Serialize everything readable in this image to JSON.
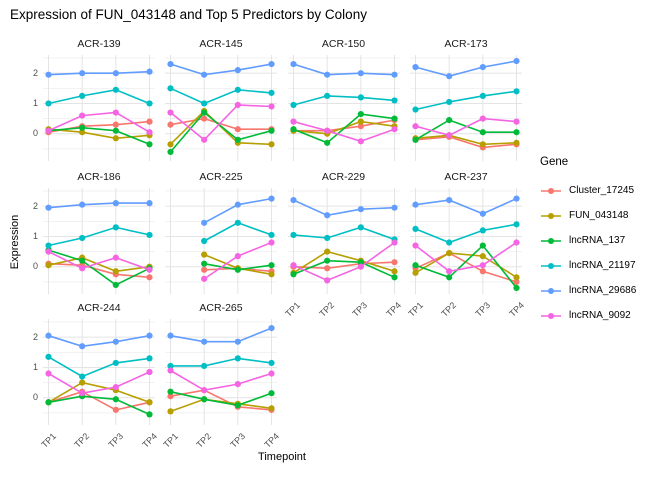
{
  "title": "Expression of FUN_043148 and Top 5 Predictors by Colony",
  "axes": {
    "x_title": "Timepoint",
    "y_title": "Expression",
    "x_tick_labels": [
      "TP1",
      "TP2",
      "TP3",
      "TP4"
    ],
    "y_tick_labels": [
      "2",
      "1",
      "0"
    ]
  },
  "legend": {
    "title": "Gene",
    "entries": [
      {
        "label": "Cluster_17245",
        "color": "#F8766D"
      },
      {
        "label": "FUN_043148",
        "color": "#B79F00"
      },
      {
        "label": "lncRNA_137",
        "color": "#00BA38"
      },
      {
        "label": "lncRNA_21197",
        "color": "#00BFC4"
      },
      {
        "label": "lncRNA_29686",
        "color": "#619CFF"
      },
      {
        "label": "lncRNA_9092",
        "color": "#F564E2"
      }
    ]
  },
  "chart_data": {
    "type": "line",
    "categories": [
      "TP1",
      "TP2",
      "TP3",
      "TP4"
    ],
    "ylim": [
      -0.9,
      2.6
    ],
    "y_major_gridlines": [
      0,
      1,
      2
    ],
    "y_minor_gridlines": [
      -0.5,
      0.5,
      1.5,
      2.5
    ],
    "grid": true,
    "legend_position": "right",
    "facets": [
      {
        "colony": "ACR-139",
        "series": {
          "Cluster_17245": [
            0.05,
            0.25,
            0.3,
            0.4
          ],
          "FUN_043148": [
            0.15,
            0.05,
            -0.15,
            -0.05
          ],
          "lncRNA_137": [
            0.1,
            0.2,
            0.1,
            -0.35
          ],
          "lncRNA_21197": [
            1.0,
            1.25,
            1.45,
            1.0
          ],
          "lncRNA_29686": [
            1.95,
            2.0,
            2.0,
            2.05
          ],
          "lncRNA_9092": [
            0.1,
            0.6,
            0.7,
            0.05
          ]
        }
      },
      {
        "colony": "ACR-145",
        "series": {
          "Cluster_17245": [
            0.3,
            0.5,
            0.15,
            0.15
          ],
          "FUN_043148": [
            -0.35,
            0.75,
            -0.3,
            -0.35
          ],
          "lncRNA_137": [
            -0.6,
            0.7,
            -0.2,
            0.1
          ],
          "lncRNA_21197": [
            1.5,
            1.0,
            1.45,
            1.35
          ],
          "lncRNA_29686": [
            2.3,
            1.95,
            2.1,
            2.3
          ],
          "lncRNA_9092": [
            0.7,
            -0.2,
            0.95,
            0.9
          ]
        }
      },
      {
        "colony": "ACR-150",
        "series": {
          "Cluster_17245": [
            0.1,
            0.1,
            0.25,
            0.45
          ],
          "FUN_043148": [
            0.1,
            0.0,
            0.4,
            0.25
          ],
          "lncRNA_137": [
            0.15,
            -0.3,
            0.65,
            0.5
          ],
          "lncRNA_21197": [
            0.95,
            1.25,
            1.2,
            1.1
          ],
          "lncRNA_29686": [
            2.3,
            1.95,
            2.0,
            1.95
          ],
          "lncRNA_9092": [
            0.4,
            0.1,
            -0.25,
            0.15
          ]
        }
      },
      {
        "colony": "ACR-173",
        "series": {
          "Cluster_17245": [
            -0.2,
            -0.1,
            -0.45,
            -0.35
          ],
          "FUN_043148": [
            -0.15,
            -0.05,
            -0.35,
            -0.3
          ],
          "lncRNA_137": [
            -0.2,
            0.45,
            0.05,
            0.05
          ],
          "lncRNA_21197": [
            0.8,
            1.05,
            1.25,
            1.4
          ],
          "lncRNA_29686": [
            2.2,
            1.9,
            2.2,
            2.4
          ],
          "lncRNA_9092": [
            0.25,
            -0.05,
            0.5,
            0.4
          ]
        }
      },
      {
        "colony": "ACR-186",
        "series": {
          "Cluster_17245": [
            0.1,
            0.05,
            -0.25,
            -0.35
          ],
          "FUN_043148": [
            0.05,
            0.3,
            -0.15,
            0.0
          ],
          "lncRNA_137": [
            0.55,
            0.2,
            -0.6,
            -0.05
          ],
          "lncRNA_21197": [
            0.7,
            0.95,
            1.3,
            1.05
          ],
          "lncRNA_29686": [
            1.95,
            2.05,
            2.1,
            2.1
          ],
          "lncRNA_9092": [
            0.5,
            -0.05,
            0.3,
            -0.1
          ]
        }
      },
      {
        "colony": "ACR-225",
        "series": {
          "Cluster_17245": [
            null,
            -0.1,
            -0.05,
            -0.15
          ],
          "FUN_043148": [
            null,
            0.4,
            -0.05,
            -0.25
          ],
          "lncRNA_137": [
            null,
            0.1,
            -0.1,
            0.05
          ],
          "lncRNA_21197": [
            null,
            0.85,
            1.45,
            1.05
          ],
          "lncRNA_29686": [
            null,
            1.45,
            2.05,
            2.25
          ],
          "lncRNA_9092": [
            null,
            -0.4,
            0.35,
            0.8
          ]
        }
      },
      {
        "colony": "ACR-229",
        "series": {
          "Cluster_17245": [
            0.0,
            -0.05,
            0.1,
            0.15
          ],
          "FUN_043148": [
            -0.2,
            0.5,
            0.2,
            -0.15
          ],
          "lncRNA_137": [
            -0.25,
            0.2,
            0.15,
            -0.35
          ],
          "lncRNA_21197": [
            1.05,
            0.95,
            1.3,
            0.9
          ],
          "lncRNA_29686": [
            2.2,
            1.7,
            1.9,
            1.95
          ],
          "lncRNA_9092": [
            0.05,
            -0.45,
            0.0,
            0.8
          ]
        }
      },
      {
        "colony": "ACR-237",
        "series": {
          "Cluster_17245": [
            -0.05,
            0.45,
            -0.15,
            -0.5
          ],
          "FUN_043148": [
            -0.2,
            0.45,
            0.35,
            -0.35
          ],
          "lncRNA_137": [
            0.05,
            -0.35,
            0.7,
            -0.7
          ],
          "lncRNA_21197": [
            1.25,
            0.8,
            1.2,
            1.4
          ],
          "lncRNA_29686": [
            2.05,
            2.2,
            1.75,
            2.25
          ],
          "lncRNA_9092": [
            0.7,
            -0.15,
            0.05,
            0.8
          ]
        }
      },
      {
        "colony": "ACR-244",
        "series": {
          "Cluster_17245": [
            -0.15,
            0.2,
            -0.4,
            -0.15
          ],
          "FUN_043148": [
            -0.15,
            0.5,
            0.25,
            -0.15
          ],
          "lncRNA_137": [
            -0.15,
            0.05,
            -0.05,
            -0.55
          ],
          "lncRNA_21197": [
            1.35,
            0.7,
            1.15,
            1.3
          ],
          "lncRNA_29686": [
            2.05,
            1.7,
            1.85,
            2.05
          ],
          "lncRNA_9092": [
            0.8,
            0.15,
            0.35,
            0.85
          ]
        }
      },
      {
        "colony": "ACR-265",
        "series": {
          "Cluster_17245": [
            0.05,
            0.25,
            -0.3,
            -0.4
          ],
          "FUN_043148": [
            -0.45,
            -0.05,
            -0.2,
            -0.35
          ],
          "lncRNA_137": [
            0.2,
            -0.05,
            -0.25,
            0.15
          ],
          "lncRNA_21197": [
            1.05,
            1.05,
            1.3,
            1.15
          ],
          "lncRNA_29686": [
            2.05,
            1.85,
            1.85,
            2.3
          ],
          "lncRNA_9092": [
            0.9,
            0.25,
            0.45,
            0.8
          ]
        }
      }
    ]
  }
}
